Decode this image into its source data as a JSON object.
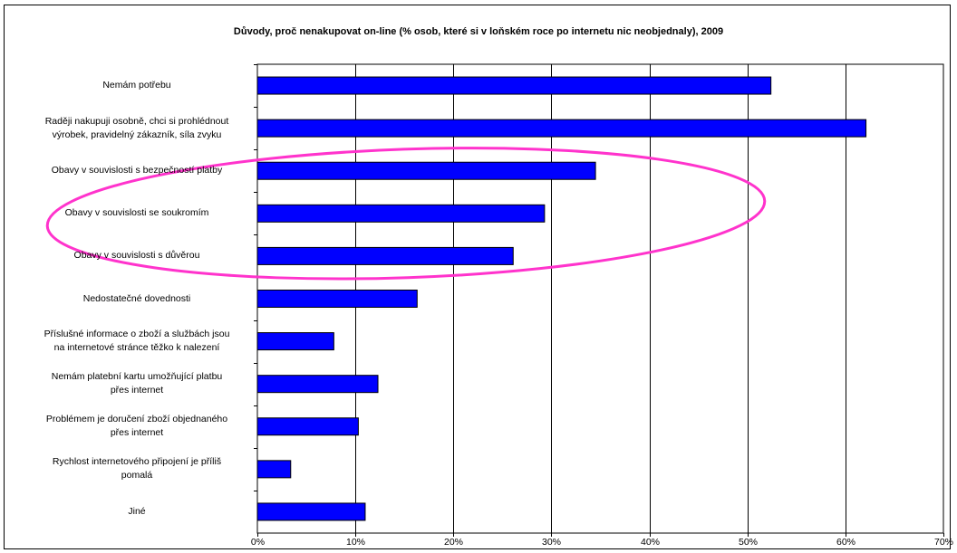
{
  "chart_data": {
    "type": "bar",
    "orientation": "horizontal",
    "title": "Důvody, proč nenakupovat on-line (% osob, které si v loňském roce po internetu nic neobjednaly), 2009",
    "xlabel": "",
    "ylabel": "",
    "xlim": [
      0,
      70
    ],
    "x_ticks": [
      "0%",
      "10%",
      "20%",
      "30%",
      "40%",
      "50%",
      "60%",
      "70%"
    ],
    "grid": "vertical",
    "legend": "none",
    "bar_color": "#0000FF",
    "annotation": {
      "type": "ellipse",
      "color": "#FF33CC",
      "covers": [
        "Obavy v souvislosti s bezpečností platby",
        "Obavy v souvislosti se soukromím",
        "Obavy v souvislosti s důvěrou"
      ]
    },
    "categories": [
      "Nemám potřebu",
      "Raději nakupuji osobně, chci si prohlédnout\nvýrobek, pravidelný zákazník, síla zvyku",
      "Obavy v souvislosti s bezpečností platby",
      "Obavy v souvislosti se soukromím",
      "Obavy v souvislosti s důvěrou",
      "Nedostatečné dovednosti",
      "Příslušné informace o zboží a službách jsou\nna internetové stránce těžko k nalezení",
      "Nemám platební kartu umožňující platbu\npřes internet",
      "Problémem je doručení zboží objednaného\npřes internet",
      "Rychlost internetového připojení je příliš\npomalá",
      "Jiné"
    ],
    "values": [
      52.4,
      62.1,
      34.5,
      29.3,
      26.1,
      16.3,
      7.8,
      12.3,
      10.3,
      3.4,
      11.0
    ]
  }
}
